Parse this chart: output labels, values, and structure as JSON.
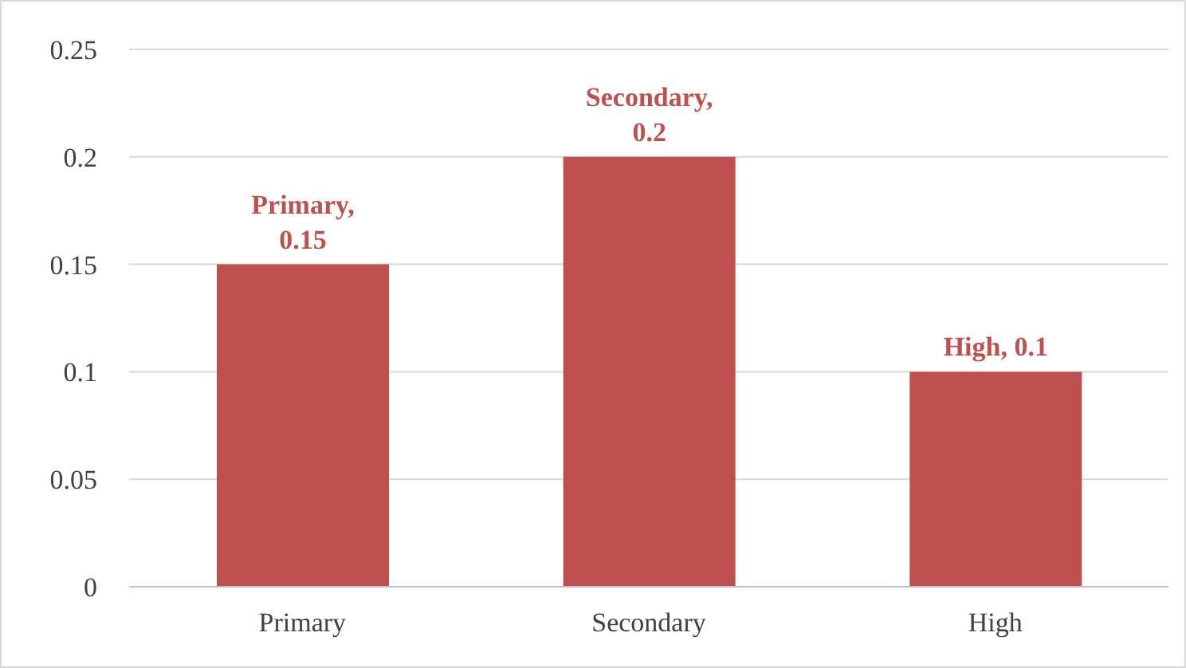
{
  "chart_data": {
    "type": "bar",
    "categories": [
      "Primary",
      "Secondary",
      "High"
    ],
    "values": [
      0.15,
      0.2,
      0.1
    ],
    "color": "#c0504d",
    "value_labels": [
      "Primary, 0.15",
      "Secondary, 0.2",
      "High, 0.1"
    ],
    "ylim": [
      0,
      0.25
    ],
    "yticks": [
      0,
      0.05,
      0.1,
      0.15,
      0.2,
      0.25
    ],
    "grid": "y"
  }
}
